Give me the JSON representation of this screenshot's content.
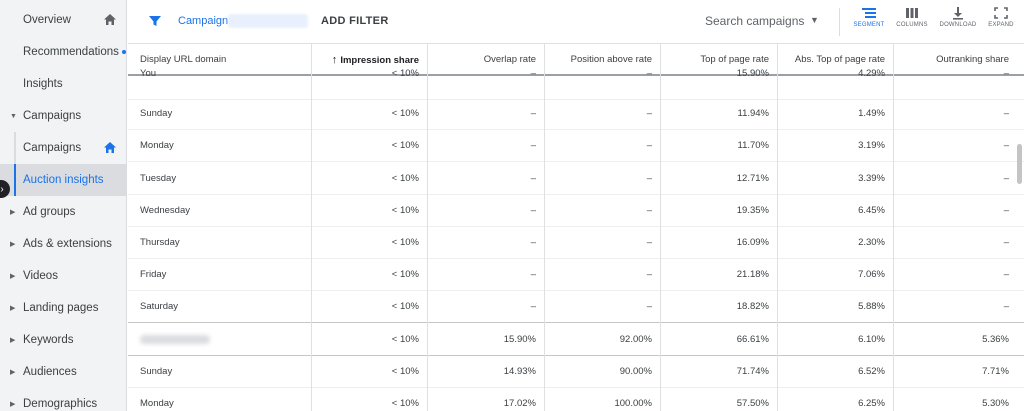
{
  "sidebar": {
    "items": [
      {
        "label": "Overview",
        "home": true
      },
      {
        "label": "Recommendations",
        "dot": true
      },
      {
        "label": "Insights"
      },
      {
        "label": "Campaigns",
        "expanded": true
      },
      {
        "label": "Campaigns",
        "sub": true,
        "home": true
      },
      {
        "label": "Auction insights",
        "sub": true,
        "active": true
      },
      {
        "label": "Ad groups",
        "caret": true
      },
      {
        "label": "Ads & extensions",
        "caret": true
      },
      {
        "label": "Videos",
        "caret": true
      },
      {
        "label": "Landing pages",
        "caret": true
      },
      {
        "label": "Keywords",
        "caret": true
      },
      {
        "label": "Audiences",
        "caret": true
      },
      {
        "label": "Demographics",
        "caret": true
      }
    ]
  },
  "toolbar": {
    "campaign_label": "Campaign:",
    "add_filter": "ADD FILTER",
    "search_placeholder": "Search campaigns",
    "segment": "SEGMENT",
    "columns": "COLUMNS",
    "download": "DOWNLOAD",
    "expand": "EXPAND",
    "accent": "#1a73e8"
  },
  "table": {
    "headers": [
      "Display URL domain",
      "Impression share",
      "Overlap rate",
      "Position above rate",
      "Top of page rate",
      "Abs. Top of page rate",
      "Outranking share"
    ],
    "sort_column": "Impression share",
    "rows": [
      [
        "You",
        "< 10%",
        "–",
        "–",
        "15.90%",
        "4.29%",
        "–"
      ],
      [
        "Sunday",
        "< 10%",
        "–",
        "–",
        "11.94%",
        "1.49%",
        "–"
      ],
      [
        "Monday",
        "< 10%",
        "–",
        "–",
        "11.70%",
        "3.19%",
        "–"
      ],
      [
        "Tuesday",
        "< 10%",
        "–",
        "–",
        "12.71%",
        "3.39%",
        "–"
      ],
      [
        "Wednesday",
        "< 10%",
        "–",
        "–",
        "19.35%",
        "6.45%",
        "–"
      ],
      [
        "Thursday",
        "< 10%",
        "–",
        "–",
        "16.09%",
        "2.30%",
        "–"
      ],
      [
        "Friday",
        "< 10%",
        "–",
        "–",
        "21.18%",
        "7.06%",
        "–"
      ],
      [
        "Saturday",
        "< 10%",
        "–",
        "–",
        "18.82%",
        "5.88%",
        "–"
      ],
      [
        "",
        "< 10%",
        "15.90%",
        "92.00%",
        "66.61%",
        "6.10%",
        "5.36%"
      ],
      [
        "Sunday",
        "< 10%",
        "14.93%",
        "90.00%",
        "71.74%",
        "6.52%",
        "7.71%"
      ],
      [
        "Monday",
        "< 10%",
        "17.02%",
        "100.00%",
        "57.50%",
        "6.25%",
        "5.30%"
      ]
    ]
  }
}
